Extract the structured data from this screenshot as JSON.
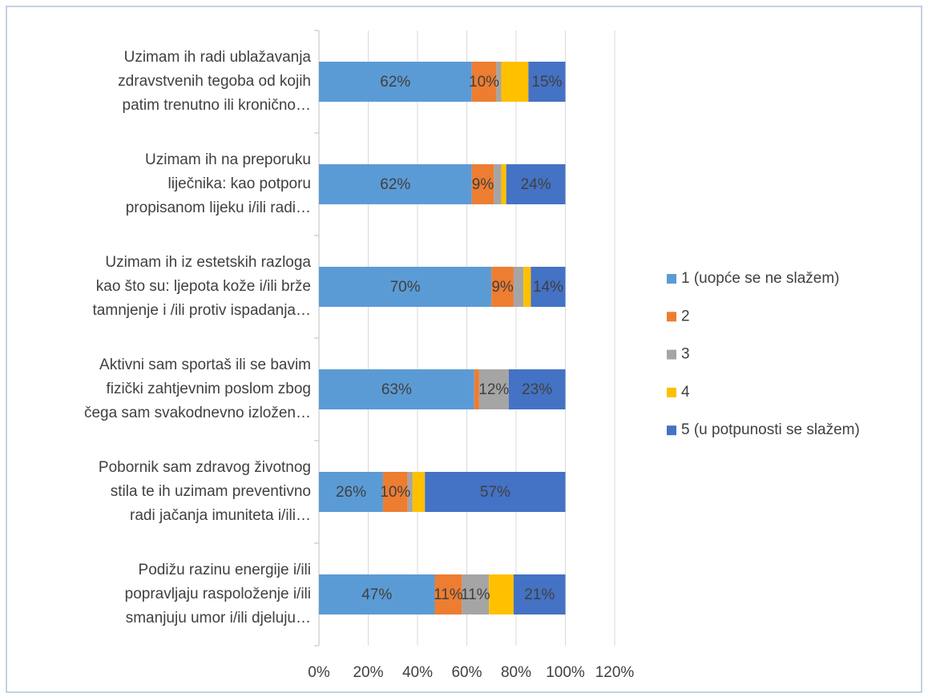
{
  "chart_data": {
    "type": "stacked-bar-horizontal",
    "categories": [
      "Uzimam ih radi ublažavanja\nzdravstvenih tegoba od kojih\npatim trenutno ili kronično…",
      "Uzimam ih na preporuku\nliječnika: kao potporu\npropisanom lijeku i/ili radi…",
      "Uzimam ih iz estetskih razloga\nkao što su: ljepota kože i/ili brže\ntamnjenje i /ili protiv ispadanja…",
      "Aktivni sam sportaš ili se bavim\nfizički zahtjevnim poslom zbog\nčega sam svakodnevno izložen…",
      "Pobornik sam zdravog životnog\nstila te ih uzimam preventivno\nradi jačanja imuniteta i/ili…",
      "Podižu razinu energije i/ili\npopravljaju raspoloženje i/ili\nsmanjuju umor i/ili djeluju…"
    ],
    "series": [
      {
        "name": "1 (uopće se ne slažem)",
        "color": "#5b9bd5",
        "values": [
          62,
          62,
          70,
          63,
          26,
          47
        ],
        "value_labels": [
          "62%",
          "62%",
          "70%",
          "63%",
          "26%",
          "47%"
        ]
      },
      {
        "name": "2",
        "color": "#ed7d31",
        "values": [
          10,
          9,
          9,
          2,
          10,
          11
        ],
        "value_labels": [
          "10%",
          "9%",
          "9%",
          null,
          "10%",
          "11%"
        ]
      },
      {
        "name": "3",
        "color": "#a5a5a5",
        "values": [
          2,
          3,
          4,
          12,
          2,
          11
        ],
        "value_labels": [
          null,
          null,
          null,
          "12%",
          null,
          "11%"
        ]
      },
      {
        "name": "4",
        "color": "#ffc000",
        "values": [
          11,
          2,
          3,
          0,
          5,
          10
        ],
        "value_labels": [
          null,
          null,
          null,
          null,
          null,
          null
        ]
      },
      {
        "name": "5 (u potpunosti se slažem)",
        "color": "#4472c4",
        "values": [
          15,
          24,
          14,
          23,
          57,
          21
        ],
        "value_labels": [
          "15%",
          "24%",
          "14%",
          "23%",
          "57%",
          "21%"
        ]
      }
    ],
    "xlim": [
      0,
      120
    ],
    "xticks": [
      {
        "value": 0,
        "label": "0%"
      },
      {
        "value": 20,
        "label": "20%"
      },
      {
        "value": 40,
        "label": "40%"
      },
      {
        "value": 60,
        "label": "60%"
      },
      {
        "value": 80,
        "label": "80%"
      },
      {
        "value": 100,
        "label": "100%"
      },
      {
        "value": 120,
        "label": "120%"
      }
    ],
    "grid": true,
    "legend": "right"
  }
}
